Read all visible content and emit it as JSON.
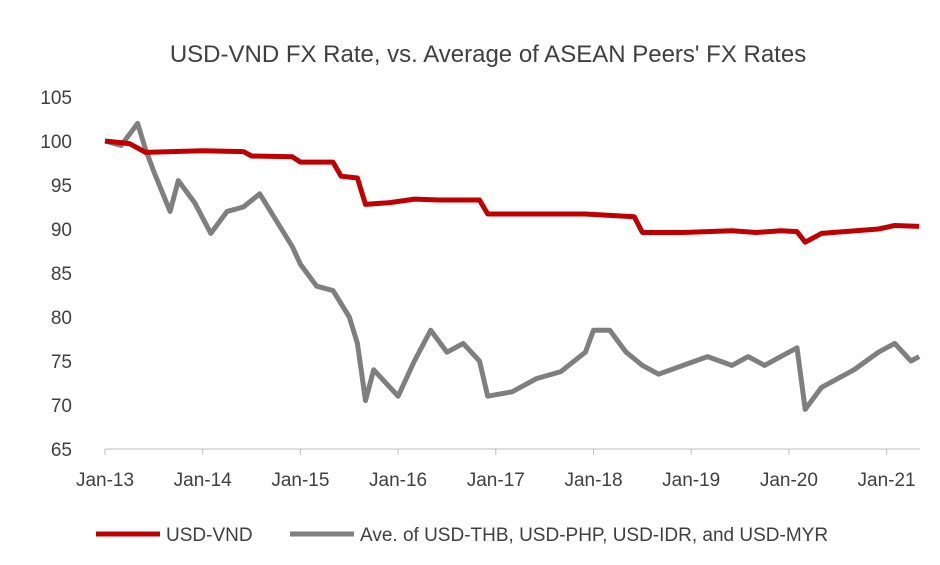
{
  "chart_data": {
    "type": "line",
    "title": "USD-VND FX Rate, vs. Average of ASEAN Peers' FX Rates",
    "xlabel": "",
    "ylabel": "",
    "ylim": [
      65,
      105
    ],
    "yticks": [
      "65",
      "70",
      "75",
      "80",
      "85",
      "90",
      "95",
      "100",
      "105"
    ],
    "xticks": [
      {
        "label": "Jan-13",
        "date": "2013-01"
      },
      {
        "label": "Jan-14",
        "date": "2014-01"
      },
      {
        "label": "Jan-15",
        "date": "2015-01"
      },
      {
        "label": "Jan-16",
        "date": "2016-01"
      },
      {
        "label": "Jan-17",
        "date": "2017-01"
      },
      {
        "label": "Jan-18",
        "date": "2018-01"
      },
      {
        "label": "Jan-19",
        "date": "2019-01"
      },
      {
        "label": "Jan-20",
        "date": "2020-01"
      },
      {
        "label": "Jan-21",
        "date": "2021-01"
      }
    ],
    "xlim": [
      "2013-01",
      "2021-05"
    ],
    "grid": false,
    "legend": "bottom",
    "series": [
      {
        "name": "USD-VND",
        "color": "#c00000",
        "points": [
          [
            "2013-01",
            100
          ],
          [
            "2013-04",
            99.7
          ],
          [
            "2013-06",
            98.7
          ],
          [
            "2014-01",
            98.9
          ],
          [
            "2014-06",
            98.8
          ],
          [
            "2014-07",
            98.3
          ],
          [
            "2014-12",
            98.2
          ],
          [
            "2015-01",
            97.6
          ],
          [
            "2015-05",
            97.6
          ],
          [
            "2015-06",
            96
          ],
          [
            "2015-08",
            95.8
          ],
          [
            "2015-09",
            92.8
          ],
          [
            "2015-12",
            93.0
          ],
          [
            "2016-03",
            93.4
          ],
          [
            "2016-06",
            93.3
          ],
          [
            "2016-11",
            93.3
          ],
          [
            "2016-12",
            91.7
          ],
          [
            "2017-06",
            91.7
          ],
          [
            "2017-12",
            91.7
          ],
          [
            "2018-06",
            91.4
          ],
          [
            "2018-07",
            89.6
          ],
          [
            "2018-12",
            89.6
          ],
          [
            "2019-06",
            89.8
          ],
          [
            "2019-09",
            89.6
          ],
          [
            "2019-12",
            89.8
          ],
          [
            "2020-02",
            89.7
          ],
          [
            "2020-03",
            88.5
          ],
          [
            "2020-05",
            89.5
          ],
          [
            "2020-12",
            90.0
          ],
          [
            "2021-02",
            90.4
          ],
          [
            "2021-05",
            90.3
          ]
        ]
      },
      {
        "name": "Ave. of USD-THB, USD-PHP, USD-IDR, and USD-MYR",
        "color": "#7f7f7f",
        "points": [
          [
            "2013-01",
            100
          ],
          [
            "2013-03",
            99.5
          ],
          [
            "2013-05",
            102
          ],
          [
            "2013-06",
            99
          ],
          [
            "2013-07",
            96.5
          ],
          [
            "2013-09",
            92
          ],
          [
            "2013-10",
            95.5
          ],
          [
            "2013-12",
            93
          ],
          [
            "2014-02",
            89.5
          ],
          [
            "2014-04",
            92
          ],
          [
            "2014-06",
            92.5
          ],
          [
            "2014-08",
            94
          ],
          [
            "2014-10",
            91
          ],
          [
            "2014-12",
            88
          ],
          [
            "2015-01",
            86
          ],
          [
            "2015-03",
            83.5
          ],
          [
            "2015-05",
            83
          ],
          [
            "2015-07",
            80
          ],
          [
            "2015-08",
            77
          ],
          [
            "2015-09",
            70.5
          ],
          [
            "2015-10",
            74
          ],
          [
            "2015-12",
            72
          ],
          [
            "2016-01",
            71
          ],
          [
            "2016-03",
            75
          ],
          [
            "2016-05",
            78.5
          ],
          [
            "2016-07",
            76
          ],
          [
            "2016-09",
            77
          ],
          [
            "2016-11",
            75
          ],
          [
            "2016-12",
            71
          ],
          [
            "2017-03",
            71.5
          ],
          [
            "2017-06",
            73
          ],
          [
            "2017-09",
            73.8
          ],
          [
            "2017-12",
            76
          ],
          [
            "2018-01",
            78.5
          ],
          [
            "2018-03",
            78.5
          ],
          [
            "2018-05",
            76
          ],
          [
            "2018-07",
            74.5
          ],
          [
            "2018-09",
            73.5
          ],
          [
            "2018-12",
            74.5
          ],
          [
            "2019-03",
            75.5
          ],
          [
            "2019-06",
            74.5
          ],
          [
            "2019-08",
            75.5
          ],
          [
            "2019-10",
            74.5
          ],
          [
            "2019-12",
            75.5
          ],
          [
            "2020-02",
            76.5
          ],
          [
            "2020-03",
            69.5
          ],
          [
            "2020-05",
            72
          ],
          [
            "2020-07",
            73
          ],
          [
            "2020-09",
            74
          ],
          [
            "2020-12",
            76
          ],
          [
            "2021-02",
            77
          ],
          [
            "2021-04",
            75
          ],
          [
            "2021-05",
            75.5
          ]
        ]
      }
    ]
  }
}
